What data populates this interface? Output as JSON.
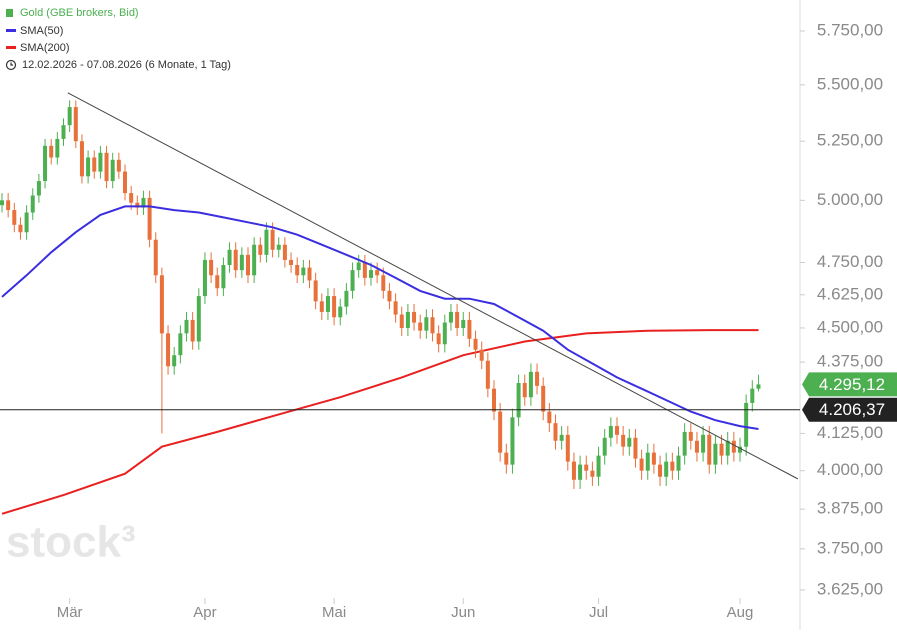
{
  "chart_data": {
    "type": "candlestick",
    "name": "Gold (GBE brokers, Bid)",
    "up_color": "#4caf50",
    "down_color": "#e8703a",
    "date_range": "12.02.2026 - 07.08.2026 (6 Monate, 1 Tag)",
    "watermark": "stock³",
    "log_scale": true,
    "ylim": [
      3595,
      5899
    ],
    "yticks": [
      {
        "value": 3625,
        "label": "3.625,00"
      },
      {
        "value": 3750,
        "label": "3.750,00"
      },
      {
        "value": 3875,
        "label": "3.875,00"
      },
      {
        "value": 4000,
        "label": "4.000,00"
      },
      {
        "value": 4125,
        "label": "4.125,00"
      },
      {
        "value": 4375,
        "label": "4.375,00"
      },
      {
        "value": 4500,
        "label": "4.500,00"
      },
      {
        "value": 4625,
        "label": "4.625,00"
      },
      {
        "value": 4750,
        "label": "4.750,00"
      },
      {
        "value": 5000,
        "label": "5.000,00"
      },
      {
        "value": 5250,
        "label": "5.250,00"
      },
      {
        "value": 5500,
        "label": "5.500,00"
      },
      {
        "value": 5750,
        "label": "5.750,00"
      }
    ],
    "categories": [
      null,
      null,
      null,
      null,
      null,
      null,
      null,
      null,
      null,
      null,
      null,
      "Mär",
      null,
      null,
      null,
      null,
      null,
      null,
      null,
      null,
      null,
      null,
      null,
      null,
      null,
      null,
      null,
      null,
      null,
      null,
      null,
      null,
      null,
      "Apr",
      null,
      null,
      null,
      null,
      null,
      null,
      null,
      null,
      null,
      null,
      null,
      null,
      null,
      null,
      null,
      null,
      null,
      null,
      null,
      null,
      "Mai",
      null,
      null,
      null,
      null,
      null,
      null,
      null,
      null,
      null,
      null,
      null,
      null,
      null,
      null,
      null,
      null,
      null,
      null,
      null,
      null,
      "Jun",
      null,
      null,
      null,
      null,
      null,
      null,
      null,
      null,
      null,
      null,
      null,
      null,
      null,
      null,
      null,
      null,
      null,
      null,
      null,
      null,
      null,
      "Jul",
      null,
      null,
      null,
      null,
      null,
      null,
      null,
      null,
      null,
      null,
      null,
      null,
      null,
      null,
      null,
      null,
      null,
      null,
      null,
      null,
      null,
      null,
      "Aug",
      null,
      null,
      null
    ],
    "open": [
      4980,
      5000,
      4960,
      4900,
      4870,
      4950,
      5020,
      5080,
      5230,
      5180,
      5260,
      5320,
      5400,
      5250,
      5100,
      5180,
      5120,
      5200,
      5080,
      5170,
      5120,
      5030,
      4990,
      4970,
      5010,
      4840,
      4700,
      4480,
      4360,
      4400,
      4480,
      4530,
      4450,
      4620,
      4760,
      4700,
      4650,
      4740,
      4800,
      4720,
      4780,
      4700,
      4820,
      4780,
      4880,
      4800,
      4820,
      4760,
      4740,
      4700,
      4730,
      4680,
      4600,
      4560,
      4620,
      4540,
      4580,
      4640,
      4720,
      4750,
      4690,
      4720,
      4700,
      4640,
      4600,
      4550,
      4500,
      4560,
      4520,
      4490,
      4540,
      4480,
      4440,
      4520,
      4560,
      4500,
      4530,
      4460,
      4420,
      4380,
      4280,
      4200,
      4060,
      4020,
      4180,
      4300,
      4250,
      4340,
      4290,
      4200,
      4160,
      4100,
      4120,
      4030,
      3970,
      4020,
      4000,
      3980,
      4050,
      4110,
      4150,
      4120,
      4080,
      4110,
      4040,
      4000,
      4060,
      4020,
      3980,
      4030,
      4000,
      4050,
      4130,
      4100,
      4060,
      4120,
      4020,
      4090,
      4050,
      4100,
      4060,
      4080,
      4230,
      4280
    ],
    "high": [
      5030,
      5030,
      4990,
      4930,
      4980,
      5050,
      5110,
      5260,
      5260,
      5290,
      5350,
      5430,
      5430,
      5280,
      5210,
      5210,
      5230,
      5230,
      5200,
      5200,
      5150,
      5060,
      5020,
      5040,
      5040,
      4870,
      4730,
      4510,
      4430,
      4510,
      4560,
      4560,
      4650,
      4790,
      4790,
      4730,
      4770,
      4830,
      4830,
      4810,
      4810,
      4850,
      4850,
      4910,
      4910,
      4850,
      4850,
      4790,
      4770,
      4760,
      4760,
      4710,
      4630,
      4650,
      4650,
      4610,
      4670,
      4750,
      4780,
      4780,
      4750,
      4750,
      4730,
      4670,
      4630,
      4580,
      4590,
      4590,
      4550,
      4570,
      4570,
      4510,
      4550,
      4590,
      4590,
      4560,
      4560,
      4490,
      4450,
      4410,
      4310,
      4230,
      4090,
      4210,
      4330,
      4330,
      4370,
      4370,
      4320,
      4230,
      4190,
      4150,
      4150,
      4060,
      4050,
      4050,
      4030,
      4080,
      4140,
      4180,
      4180,
      4150,
      4140,
      4140,
      4070,
      4090,
      4090,
      4050,
      4060,
      4060,
      4080,
      4160,
      4160,
      4130,
      4150,
      4150,
      4120,
      4120,
      4130,
      4130,
      4110,
      4260,
      4310,
      4330
    ],
    "low": [
      4950,
      4930,
      4870,
      4840,
      4840,
      4920,
      4990,
      5050,
      5150,
      5150,
      5230,
      5290,
      5220,
      5070,
      5070,
      5090,
      5090,
      5050,
      5050,
      5090,
      5000,
      4960,
      4940,
      4940,
      4810,
      4670,
      4125,
      4330,
      4330,
      4370,
      4450,
      4420,
      4420,
      4590,
      4670,
      4620,
      4620,
      4710,
      4690,
      4690,
      4670,
      4670,
      4750,
      4750,
      4770,
      4770,
      4730,
      4710,
      4670,
      4670,
      4650,
      4570,
      4530,
      4530,
      4510,
      4510,
      4550,
      4610,
      4690,
      4660,
      4660,
      4670,
      4610,
      4570,
      4520,
      4470,
      4470,
      4490,
      4460,
      4460,
      4450,
      4410,
      4410,
      4490,
      4470,
      4470,
      4430,
      4390,
      4350,
      4250,
      4170,
      4030,
      3990,
      3990,
      4150,
      4220,
      4220,
      4260,
      4170,
      4130,
      4070,
      4070,
      4000,
      3940,
      3940,
      3970,
      3950,
      3950,
      4020,
      4080,
      4090,
      4050,
      4050,
      4010,
      3970,
      3970,
      3990,
      3950,
      3950,
      3970,
      3970,
      4020,
      4070,
      4030,
      4030,
      3990,
      3990,
      4020,
      4020,
      4030,
      4030,
      4050,
      4200,
      4270
    ],
    "close": [
      5000,
      4960,
      4900,
      4870,
      4950,
      5020,
      5080,
      5230,
      5180,
      5260,
      5320,
      5400,
      5250,
      5100,
      5180,
      5120,
      5200,
      5080,
      5170,
      5120,
      5030,
      4990,
      4970,
      5010,
      4840,
      4700,
      4480,
      4360,
      4400,
      4480,
      4530,
      4450,
      4620,
      4760,
      4700,
      4650,
      4740,
      4800,
      4720,
      4780,
      4700,
      4820,
      4780,
      4880,
      4800,
      4820,
      4760,
      4740,
      4700,
      4730,
      4680,
      4600,
      4560,
      4620,
      4540,
      4580,
      4640,
      4720,
      4750,
      4690,
      4720,
      4700,
      4640,
      4600,
      4550,
      4500,
      4560,
      4520,
      4490,
      4540,
      4480,
      4440,
      4520,
      4560,
      4500,
      4530,
      4460,
      4420,
      4380,
      4280,
      4200,
      4060,
      4020,
      4180,
      4300,
      4250,
      4340,
      4290,
      4200,
      4160,
      4100,
      4120,
      4030,
      3970,
      4020,
      4000,
      3980,
      4050,
      4110,
      4150,
      4120,
      4080,
      4110,
      4040,
      4000,
      4060,
      4020,
      3980,
      4030,
      4000,
      4050,
      4130,
      4100,
      4060,
      4120,
      4020,
      4090,
      4050,
      4100,
      4060,
      4080,
      4230,
      4280,
      4295.12
    ],
    "overlays": [
      {
        "name": "SMA(50)",
        "color": "#3a2ee0",
        "x": [
          0,
          4,
          8,
          12,
          16,
          20,
          24,
          28,
          32,
          36,
          40,
          44,
          48,
          52,
          56,
          60,
          64,
          68,
          72,
          76,
          80,
          84,
          88,
          92,
          96,
          100,
          104,
          108,
          112,
          116,
          120,
          123
        ],
        "values": [
          4617,
          4700,
          4790,
          4870,
          4940,
          4975,
          4975,
          4960,
          4950,
          4930,
          4910,
          4890,
          4860,
          4820,
          4780,
          4740,
          4690,
          4640,
          4610,
          4610,
          4590,
          4540,
          4490,
          4420,
          4370,
          4320,
          4280,
          4240,
          4200,
          4170,
          4150,
          4140
        ]
      },
      {
        "name": "SMA(200)",
        "color": "#e82020",
        "x": [
          0,
          10,
          20,
          26,
          35,
          45,
          55,
          65,
          75,
          85,
          95,
          105,
          115,
          123
        ],
        "values": [
          3860,
          3920,
          3990,
          4080,
          4130,
          4190,
          4250,
          4320,
          4400,
          4450,
          4480,
          4490,
          4492,
          4492
        ]
      }
    ],
    "trendline": {
      "color": "#444444",
      "x": [
        10.7,
        129.4
      ],
      "values": [
        5464,
        3973
      ]
    },
    "hline": {
      "value": 4206.37,
      "label": "4.206,37",
      "color": "#222222"
    },
    "last_price": {
      "value": 4295.12,
      "label": "4.295,12"
    }
  }
}
